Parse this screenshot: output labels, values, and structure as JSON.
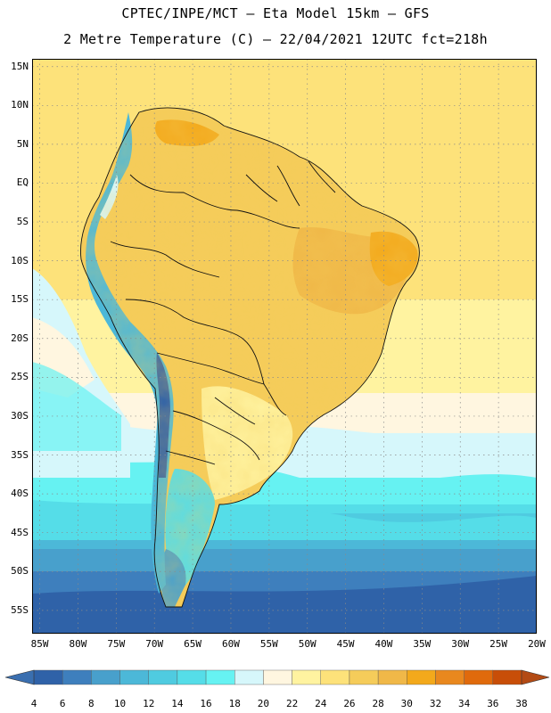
{
  "title": {
    "line1": "CPTEC/INPE/MCT –  Eta Model 15km – GFS",
    "line2": "2 Metre Temperature (C) – 22/04/2021 12UTC fct=218h"
  },
  "map": {
    "lat_range": [
      -58,
      16
    ],
    "lon_range": [
      -86,
      -20
    ],
    "lat_labels": [
      "15N",
      "10N",
      "5N",
      "EQ",
      "5S",
      "10S",
      "15S",
      "20S",
      "25S",
      "30S",
      "35S",
      "40S",
      "45S",
      "50S",
      "55S"
    ],
    "lat_values": [
      15,
      10,
      5,
      0,
      -5,
      -10,
      -15,
      -20,
      -25,
      -30,
      -35,
      -40,
      -45,
      -50,
      -55
    ],
    "lon_labels": [
      "85W",
      "80W",
      "75W",
      "70W",
      "65W",
      "60W",
      "55W",
      "50W",
      "45W",
      "40W",
      "35W",
      "30W",
      "25W",
      "20W"
    ],
    "lon_values": [
      -85,
      -80,
      -75,
      -70,
      -65,
      -60,
      -55,
      -50,
      -45,
      -40,
      -35,
      -30,
      -25,
      -20
    ]
  },
  "colorbar": {
    "labels": [
      "4",
      "6",
      "8",
      "10",
      "12",
      "14",
      "16",
      "18",
      "20",
      "22",
      "24",
      "26",
      "28",
      "30",
      "32",
      "34",
      "36",
      "38"
    ],
    "colors": [
      "#2f62a8",
      "#3e7fbd",
      "#48a0cc",
      "#4cb8d8",
      "#4fcbe0",
      "#55dde8",
      "#66f2f2",
      "#d6f7fb",
      "#fff6e0",
      "#fff3a0",
      "#fde27a",
      "#f5cc5a",
      "#f0b848",
      "#f3a91b",
      "#e9881e",
      "#e06a0c",
      "#c84e08"
    ],
    "low_color": "#3a6fb0",
    "high_color": "#b34a14"
  }
}
